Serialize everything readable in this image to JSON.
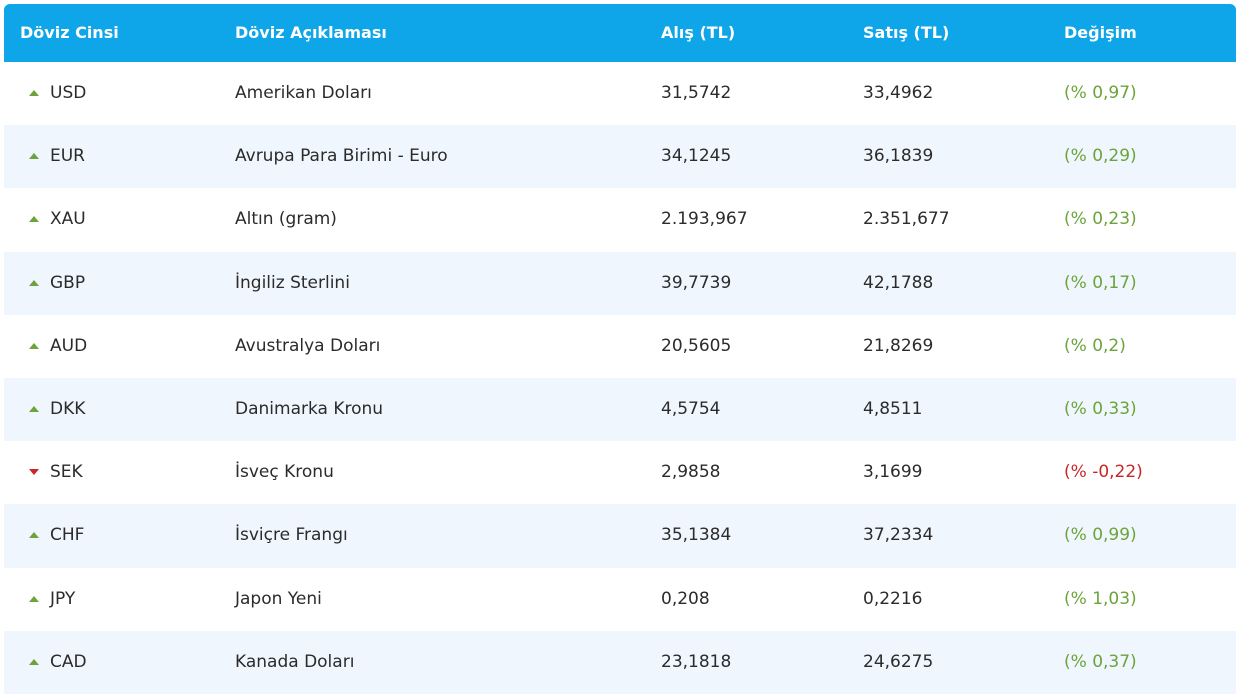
{
  "header": {
    "code": "Döviz Cinsi",
    "description": "Döviz Açıklaması",
    "buy": "Alış (TL)",
    "sell": "Satış (TL)",
    "change": "Değişim"
  },
  "colors": {
    "header_bg": "#0ea5e9",
    "up": "#6ca33a",
    "down": "#c62828",
    "row_alt": "#f0f6fd"
  },
  "rows": [
    {
      "code": "USD",
      "description": "Amerikan Doları",
      "buy": "31,5742",
      "sell": "33,4962",
      "change": "(% 0,97)",
      "direction": "up",
      "icon": "triangle-up-icon"
    },
    {
      "code": "EUR",
      "description": "Avrupa Para Birimi - Euro",
      "buy": "34,1245",
      "sell": "36,1839",
      "change": "(% 0,29)",
      "direction": "up",
      "icon": "triangle-up-icon"
    },
    {
      "code": "XAU",
      "description": "Altın (gram)",
      "buy": "2.193,967",
      "sell": "2.351,677",
      "change": "(% 0,23)",
      "direction": "up",
      "icon": "triangle-up-icon"
    },
    {
      "code": "GBP",
      "description": "İngiliz Sterlini",
      "buy": "39,7739",
      "sell": "42,1788",
      "change": "(% 0,17)",
      "direction": "up",
      "icon": "triangle-up-icon"
    },
    {
      "code": "AUD",
      "description": "Avustralya Doları",
      "buy": "20,5605",
      "sell": "21,8269",
      "change": "(% 0,2)",
      "direction": "up",
      "icon": "triangle-up-icon"
    },
    {
      "code": "DKK",
      "description": "Danimarka Kronu",
      "buy": "4,5754",
      "sell": "4,8511",
      "change": "(% 0,33)",
      "direction": "up",
      "icon": "triangle-up-icon"
    },
    {
      "code": "SEK",
      "description": "İsveç Kronu",
      "buy": "2,9858",
      "sell": "3,1699",
      "change": "(% -0,22)",
      "direction": "down",
      "icon": "triangle-down-icon"
    },
    {
      "code": "CHF",
      "description": "İsviçre Frangı",
      "buy": "35,1384",
      "sell": "37,2334",
      "change": "(% 0,99)",
      "direction": "up",
      "icon": "triangle-up-icon"
    },
    {
      "code": "JPY",
      "description": "Japon Yeni",
      "buy": "0,208",
      "sell": "0,2216",
      "change": "(% 1,03)",
      "direction": "up",
      "icon": "triangle-up-icon"
    },
    {
      "code": "CAD",
      "description": "Kanada Doları",
      "buy": "23,1818",
      "sell": "24,6275",
      "change": "(% 0,37)",
      "direction": "up",
      "icon": "triangle-up-icon"
    }
  ]
}
